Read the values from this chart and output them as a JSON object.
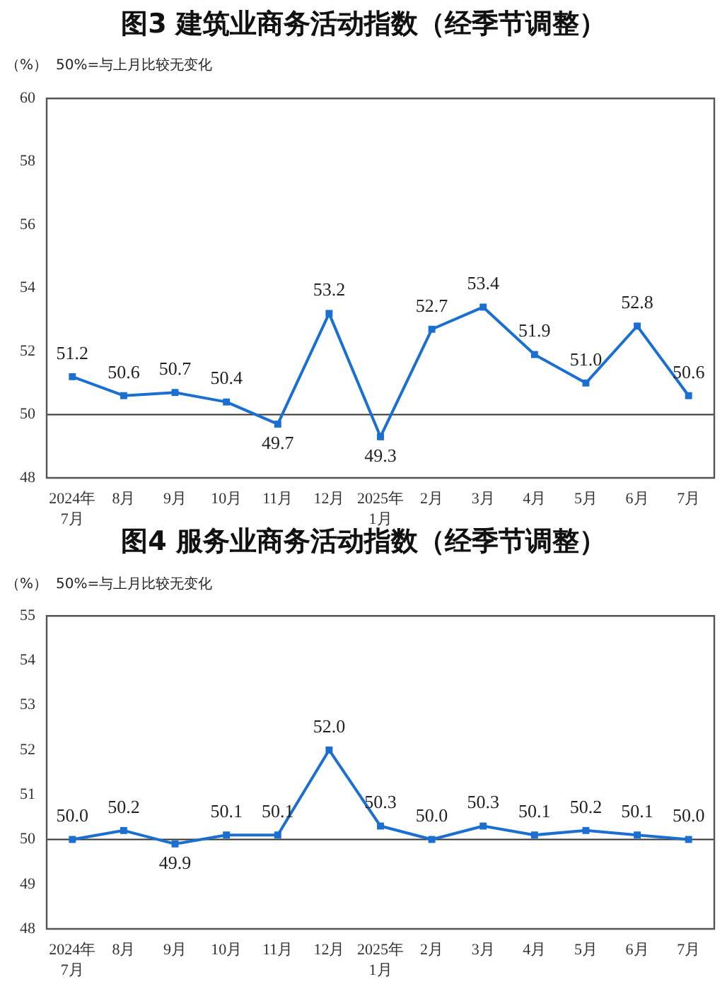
{
  "chart_data": [
    {
      "type": "line",
      "title": "图3 建筑业商务活动指数（经季节调整）",
      "ylabel": "（%）",
      "annotations": [
        "50%=与上月比较无变化"
      ],
      "categories": [
        "2024年\n7月",
        "8月",
        "9月",
        "10月",
        "11月",
        "12月",
        "2025年\n1月",
        "2月",
        "3月",
        "4月",
        "5月",
        "6月",
        "7月"
      ],
      "values": [
        51.2,
        50.6,
        50.7,
        50.4,
        49.7,
        53.2,
        49.3,
        52.7,
        53.4,
        51.9,
        51.0,
        52.8,
        50.6
      ],
      "value_labels": [
        "51.2",
        "50.6",
        "50.7",
        "50.4",
        "49.7",
        "53.2",
        "49.3",
        "52.7",
        "53.4",
        "51.9",
        "51.0",
        "52.8",
        "50.6"
      ],
      "color": "#1a6fd0",
      "marker": "square",
      "ylim": [
        48,
        60
      ],
      "yticks": [
        48,
        50,
        52,
        54,
        56,
        58,
        60
      ],
      "ref_lines": [
        {
          "axis": "y",
          "value": 50
        }
      ]
    },
    {
      "type": "line",
      "title": "图4 服务业商务活动指数（经季节调整）",
      "ylabel": "（%）",
      "annotations": [
        "50%=与上月比较无变化"
      ],
      "categories": [
        "2024年\n7月",
        "8月",
        "9月",
        "10月",
        "11月",
        "12月",
        "2025年\n1月",
        "2月",
        "3月",
        "4月",
        "5月",
        "6月",
        "7月"
      ],
      "values": [
        50.0,
        50.2,
        49.9,
        50.1,
        50.1,
        52.0,
        50.3,
        50.0,
        50.3,
        50.1,
        50.2,
        50.1,
        50.0
      ],
      "value_labels": [
        "50.0",
        "50.2",
        "49.9",
        "50.1",
        "50.1",
        "52.0",
        "50.3",
        "50.0",
        "50.3",
        "50.1",
        "50.2",
        "50.1",
        "50.0"
      ],
      "color": "#1a6fd0",
      "marker": "square",
      "ylim": [
        48,
        55
      ],
      "yticks": [
        48,
        49,
        50,
        51,
        52,
        53,
        54,
        55
      ],
      "ref_lines": [
        {
          "axis": "y",
          "value": 50
        }
      ]
    }
  ]
}
